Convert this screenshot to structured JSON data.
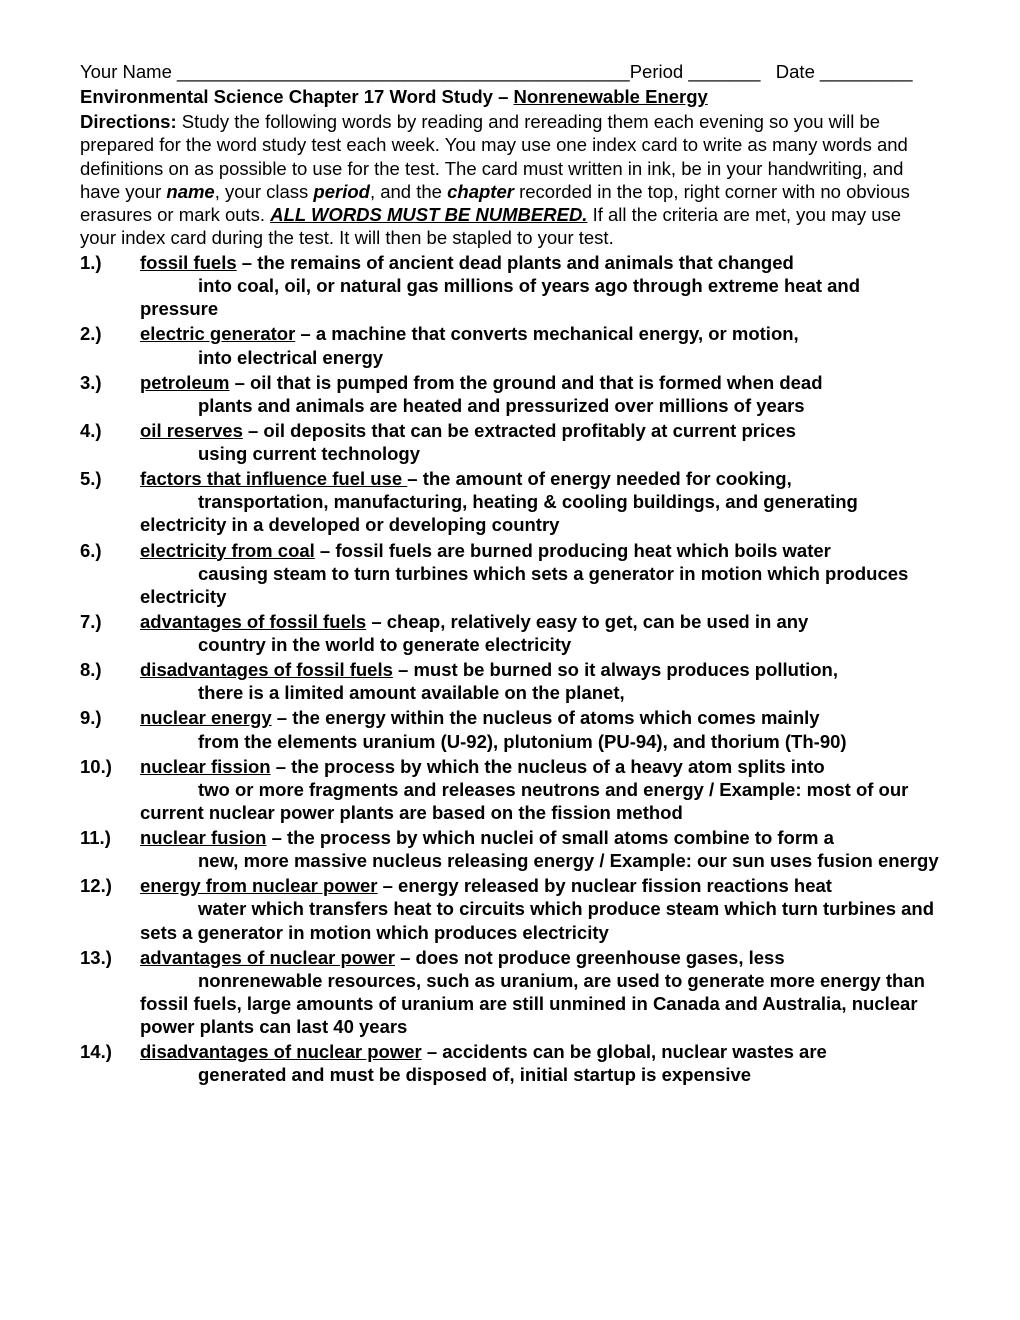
{
  "header": {
    "name_label": "Your Name ____________________________________________",
    "period_label": "Period _______",
    "date_label": "Date _________"
  },
  "title_prefix": "Environmental Science Chapter 17 Word Study – ",
  "title_underlined": "Nonrenewable Energy",
  "directions": {
    "bold_label": "Directions:",
    "text1": " Study the following words by reading and rereading them each evening so you will be prepared for the word study test each week.  You may use one index card to write as many words and definitions on as possible to use for the test.  The card must written in ink, be in your handwriting, and have your ",
    "name": "name",
    "text2": ", your class ",
    "period": "period",
    "text3": ", and the ",
    "chapter": "chapter",
    "text4": " recorded in the top, right corner with no obvious erasures or mark outs.  ",
    "all_words": "ALL WORDS MUST BE NUMBERED.",
    "text5": " If all the criteria are met, you may use your index card during the test. It will then be stapled to your test."
  },
  "words": [
    {
      "num": "1.)",
      "term": "fossil fuels",
      "def": " – the remains of ancient dead plants and animals  that changed into coal, oil, or natural gas millions of years ago through extreme heat and pressure"
    },
    {
      "num": "2.)",
      "term": "electric generator",
      "def": " – a machine that converts mechanical energy, or motion, into electrical energy"
    },
    {
      "num": "3.)",
      "term": "petroleum",
      "def": " – oil that is pumped from the ground and that is formed when dead plants and animals are heated and pressurized over millions of years"
    },
    {
      "num": "4.)",
      "term": "oil reserves",
      "def": " – oil deposits that can be extracted profitably at current prices using current technology"
    },
    {
      "num": "5.)",
      "term": "factors that influence fuel use ",
      "def": "– the amount of energy needed for cooking, transportation, manufacturing, heating & cooling buildings, and generating electricity in a developed or developing country"
    },
    {
      "num": "6.)",
      "term": "electricity from coal",
      "def": " – fossil fuels are burned producing heat which boils water causing steam to turn turbines which sets a generator in motion which produces electricity"
    },
    {
      "num": "7.)",
      "term": "advantages of fossil fuels",
      "def": " – cheap, relatively easy to get, can be used in any country in the world to generate electricity"
    },
    {
      "num": "8.)",
      "term": "disadvantages of fossil fuels",
      "def": " – must be burned so it always produces pollution, there is a limited amount available on the planet,"
    },
    {
      "num": "9.)",
      "term": "nuclear energy",
      "def": " – the energy within the nucleus of atoms which comes mainly from the elements uranium (U-92), plutonium (PU-94), and thorium (Th-90)"
    },
    {
      "num": "10.)",
      "term": "nuclear fission",
      "def": " – the process by which the nucleus of a heavy atom splits into two or more fragments and releases neutrons and energy / Example: most of our current nuclear power plants are based on the fission method"
    },
    {
      "num": "11.)",
      "term": "nuclear fusion",
      "def": " – the process by which nuclei of small atoms combine to form a new, more massive nucleus releasing energy / Example: our sun uses fusion energy"
    },
    {
      "num": "12.)",
      "term": "energy from nuclear power",
      "def": " – energy released by nuclear fission reactions heat water which transfers heat to circuits which produce steam which turn turbines and sets a generator in motion which produces electricity"
    },
    {
      "num": "13.)",
      "term": "advantages of nuclear power",
      "def": " – does not produce greenhouse gases, less nonrenewable resources, such as uranium, are used to generate more energy than fossil fuels, large amounts of uranium are still unmined in Canada and Australia, nuclear power plants can last 40 years"
    },
    {
      "num": "14.)",
      "term": "disadvantages of nuclear power",
      "def": " – accidents can be global, nuclear wastes are generated and must be disposed of, initial startup is expensive"
    }
  ]
}
